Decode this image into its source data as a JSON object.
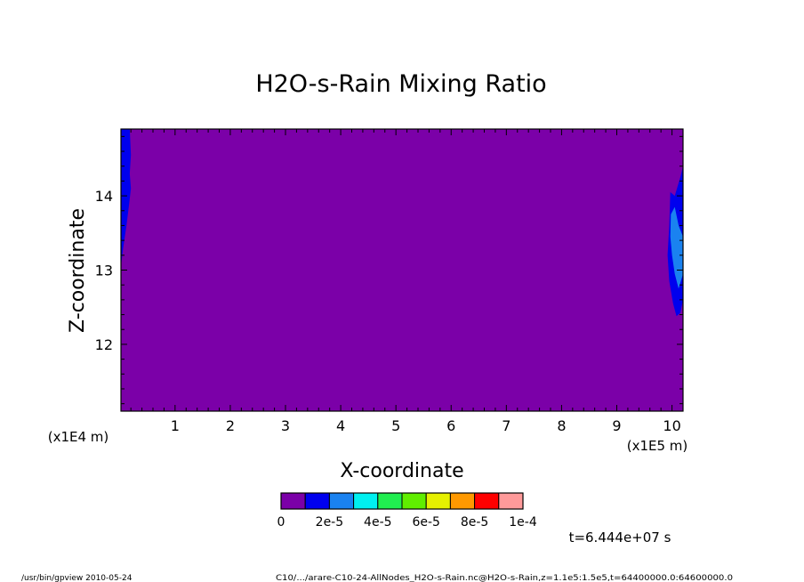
{
  "chart_data": {
    "type": "heatmap",
    "title": "H2O-s-Rain Mixing Ratio",
    "xlabel": "X-coordinate",
    "ylabel": "Z-coordinate",
    "x_units_label": "(x1E5 m)",
    "y_units_label": "(x1E4 m)",
    "xlim": [
      0.02,
      10.2
    ],
    "ylim": [
      11.1,
      14.9
    ],
    "x_ticks": [
      1,
      2,
      3,
      4,
      5,
      6,
      7,
      8,
      9,
      10
    ],
    "y_ticks": [
      12,
      13,
      14
    ],
    "background_level": 0,
    "colorbar": {
      "colors": [
        "#7b00a8",
        "#0000ee",
        "#1a82f0",
        "#00f0f0",
        "#20ee50",
        "#60ee00",
        "#e6f000",
        "#ff9900",
        "#ff0000",
        "#ff9a9a"
      ],
      "tick_labels": [
        "0",
        "2e-5",
        "4e-5",
        "6e-5",
        "8e-5",
        "1e-4"
      ]
    },
    "features": [
      {
        "level": "1e-5 to 2e-5",
        "color": "#0000ee",
        "polygon": [
          [
            0.02,
            14.9
          ],
          [
            0.18,
            14.9
          ],
          [
            0.2,
            14.55
          ],
          [
            0.18,
            14.3
          ],
          [
            0.2,
            14.1
          ],
          [
            0.17,
            13.9
          ],
          [
            0.12,
            13.6
          ],
          [
            0.06,
            13.3
          ],
          [
            0.02,
            13.05
          ]
        ]
      },
      {
        "level": "1e-5 to 2e-5",
        "color": "#0000ee",
        "polygon": [
          [
            10.2,
            14.4
          ],
          [
            10.15,
            14.25
          ],
          [
            10.05,
            14.0
          ],
          [
            9.97,
            14.05
          ],
          [
            9.95,
            13.6
          ],
          [
            9.92,
            13.2
          ],
          [
            9.95,
            12.85
          ],
          [
            10.02,
            12.55
          ],
          [
            10.08,
            12.38
          ],
          [
            10.15,
            12.42
          ],
          [
            10.2,
            12.6
          ]
        ]
      },
      {
        "level": "2e-5 to 4e-5",
        "color": "#1a82f0",
        "polygon": [
          [
            9.98,
            13.75
          ],
          [
            10.05,
            13.85
          ],
          [
            10.12,
            13.6
          ],
          [
            10.2,
            13.45
          ],
          [
            10.2,
            12.95
          ],
          [
            10.12,
            12.75
          ],
          [
            10.05,
            12.95
          ],
          [
            10.0,
            13.2
          ],
          [
            9.97,
            13.45
          ]
        ]
      }
    ],
    "time_label": "t=6.444e+07 s"
  },
  "footer": {
    "left": "/usr/bin/gpview  2010-05-24",
    "right": "C10/.../arare-C10-24-AllNodes_H2O-s-Rain.nc@H2O-s-Rain,z=1.1e5:1.5e5,t=64400000.0:64600000.0"
  }
}
